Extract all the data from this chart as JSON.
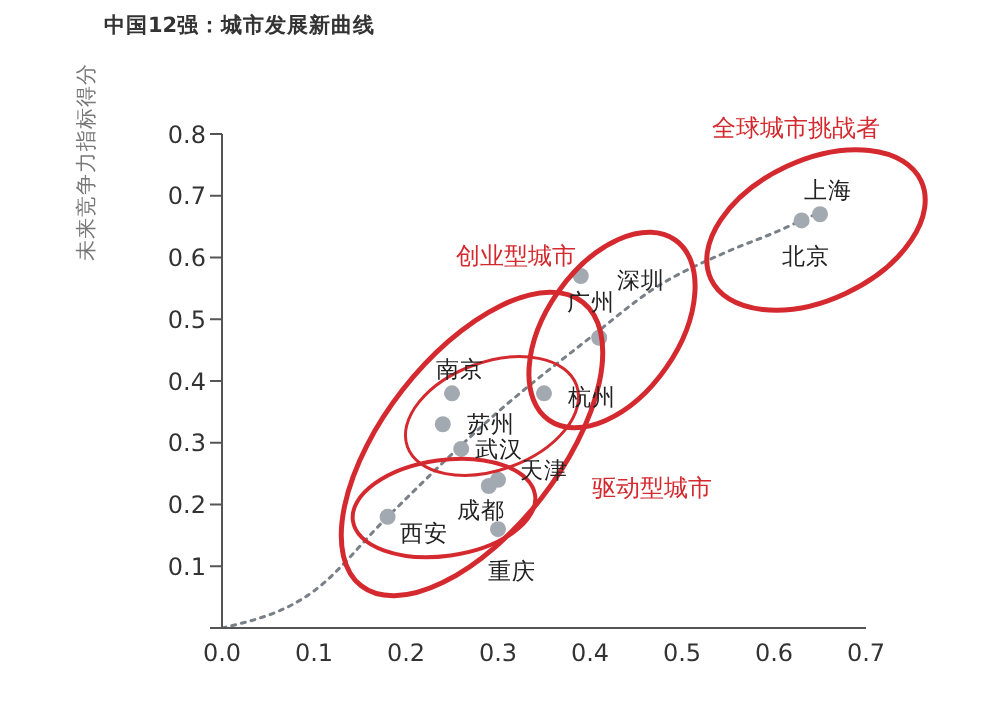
{
  "chart_data": {
    "type": "scatter",
    "title": "中国12强：城市发展新曲线",
    "ylabel": "未来竞争力指标得分",
    "xlim": [
      0,
      0.7
    ],
    "xticks": [
      {
        "value": 0,
        "label": "0.0"
      },
      0.1,
      0.2,
      0.3,
      0.4,
      0.5,
      0.6,
      0.7
    ],
    "ylim": [
      0,
      0.8
    ],
    "yticks": [
      {
        "value": 0,
        "label": null
      },
      0.1,
      0.2,
      0.3,
      0.4,
      0.5,
      0.6,
      0.7,
      0.8
    ],
    "grid": false,
    "legend": false,
    "marker": "circle",
    "series": [
      {
        "color": "#a3a9b0",
        "x": [
          0.65,
          0.63,
          0.39,
          0.41,
          0.35,
          0.25,
          0.24,
          0.26,
          0.3,
          0.29,
          0.18,
          0.3
        ],
        "values": [
          0.67,
          0.66,
          0.57,
          0.47,
          0.38,
          0.38,
          0.33,
          0.29,
          0.24,
          0.23,
          0.18,
          0.16
        ],
        "value_labels": [
          "上海",
          "北京",
          "深圳",
          "广州",
          "杭州",
          "南京",
          "苏州",
          "武汉",
          "天津",
          "成都",
          "西安",
          "重庆"
        ]
      },
      {
        "type": "line",
        "color": "#7a8088",
        "line_style": "dotted",
        "marker": "none",
        "x": [
          0,
          0.1,
          0.18,
          0.3,
          0.4,
          0.47,
          0.55,
          0.6,
          0.63,
          0.66
        ],
        "values": [
          0,
          0.06,
          0.18,
          0.35,
          0.47,
          0.55,
          0.61,
          0.64,
          0.66,
          0.68
        ]
      }
    ],
    "annotations": [
      "全球城市挑战者",
      "创业型城市",
      "驱动型城市"
    ]
  }
}
